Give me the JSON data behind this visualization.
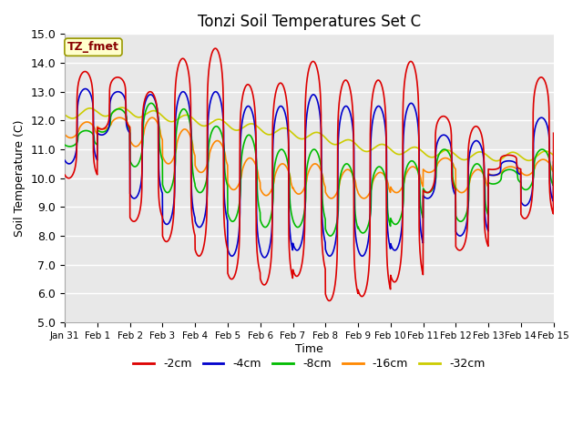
{
  "title": "Tonzi Soil Temperatures Set C",
  "xlabel": "Time",
  "ylabel": "Soil Temperature (C)",
  "ylim": [
    5.0,
    15.0
  ],
  "yticks": [
    5.0,
    6.0,
    7.0,
    8.0,
    9.0,
    10.0,
    11.0,
    12.0,
    13.0,
    14.0,
    15.0
  ],
  "fig_bg_color": "#ffffff",
  "plot_bg_color": "#e8e8e8",
  "grid_color": "#ffffff",
  "label_box_color": "#ffffcc",
  "label_box_edge": "#999900",
  "label_text": "TZ_fmet",
  "label_text_color": "#880000",
  "lines": {
    "-2cm": {
      "color": "#dd0000",
      "lw": 1.2
    },
    "-4cm": {
      "color": "#0000cc",
      "lw": 1.2
    },
    "-8cm": {
      "color": "#00bb00",
      "lw": 1.2
    },
    "-16cm": {
      "color": "#ff8800",
      "lw": 1.2
    },
    "-32cm": {
      "color": "#cccc00",
      "lw": 1.2
    }
  },
  "xtick_labels": [
    "Jan 31",
    "Feb 1",
    "Feb 2",
    "Feb 3",
    "Feb 4",
    "Feb 5",
    "Feb 6",
    "Feb 7",
    "Feb 8",
    "Feb 9",
    "Feb 10",
    "Feb 11",
    "Feb 12",
    "Feb 13",
    "Feb 14",
    "Feb 15"
  ],
  "peaks_2cm": [
    13.7,
    13.5,
    13.0,
    14.15,
    14.5,
    13.25,
    13.3,
    14.05,
    13.4,
    13.4,
    14.05,
    12.15,
    11.8,
    10.8,
    13.5,
    13.5
  ],
  "troughs_2cm": [
    10.0,
    11.7,
    8.5,
    7.8,
    7.3,
    6.5,
    6.3,
    6.6,
    5.75,
    5.9,
    6.4,
    9.5,
    7.5,
    10.3,
    8.6,
    11.5
  ],
  "peaks_4cm": [
    13.1,
    13.0,
    12.9,
    13.0,
    13.0,
    12.5,
    12.5,
    12.9,
    12.5,
    12.5,
    12.6,
    11.5,
    11.3,
    10.6,
    12.1,
    11.9
  ],
  "troughs_4cm": [
    10.5,
    11.5,
    9.3,
    8.4,
    8.3,
    7.3,
    7.25,
    7.5,
    7.3,
    7.3,
    7.5,
    9.3,
    8.0,
    10.1,
    9.05,
    10.5
  ],
  "peaks_8cm": [
    11.65,
    12.4,
    12.6,
    12.4,
    11.8,
    11.5,
    11.0,
    11.0,
    10.5,
    10.4,
    10.6,
    11.0,
    10.5,
    10.3,
    11.0,
    11.7
  ],
  "troughs_8cm": [
    11.1,
    11.6,
    10.4,
    9.5,
    9.5,
    8.5,
    8.3,
    8.3,
    8.0,
    8.1,
    8.4,
    9.5,
    8.5,
    9.8,
    9.6,
    10.3
  ],
  "peaks_16cm": [
    11.95,
    12.1,
    12.1,
    11.7,
    11.3,
    10.7,
    10.5,
    10.5,
    10.3,
    10.2,
    10.4,
    10.7,
    10.3,
    10.4,
    10.65,
    11.2
  ],
  "troughs_16cm": [
    11.4,
    11.7,
    11.1,
    10.5,
    10.2,
    9.6,
    9.4,
    9.45,
    9.3,
    9.3,
    9.5,
    10.2,
    9.5,
    10.1,
    10.1,
    10.7
  ],
  "base_32cm": [
    12.2,
    12.3,
    12.3,
    12.15,
    12.0,
    11.85,
    11.7,
    11.55,
    11.4,
    11.1,
    11.0,
    10.9,
    10.8,
    10.75,
    10.75,
    10.8,
    11.0
  ],
  "peak_sharpness": 8.0,
  "points_per_day": 200
}
